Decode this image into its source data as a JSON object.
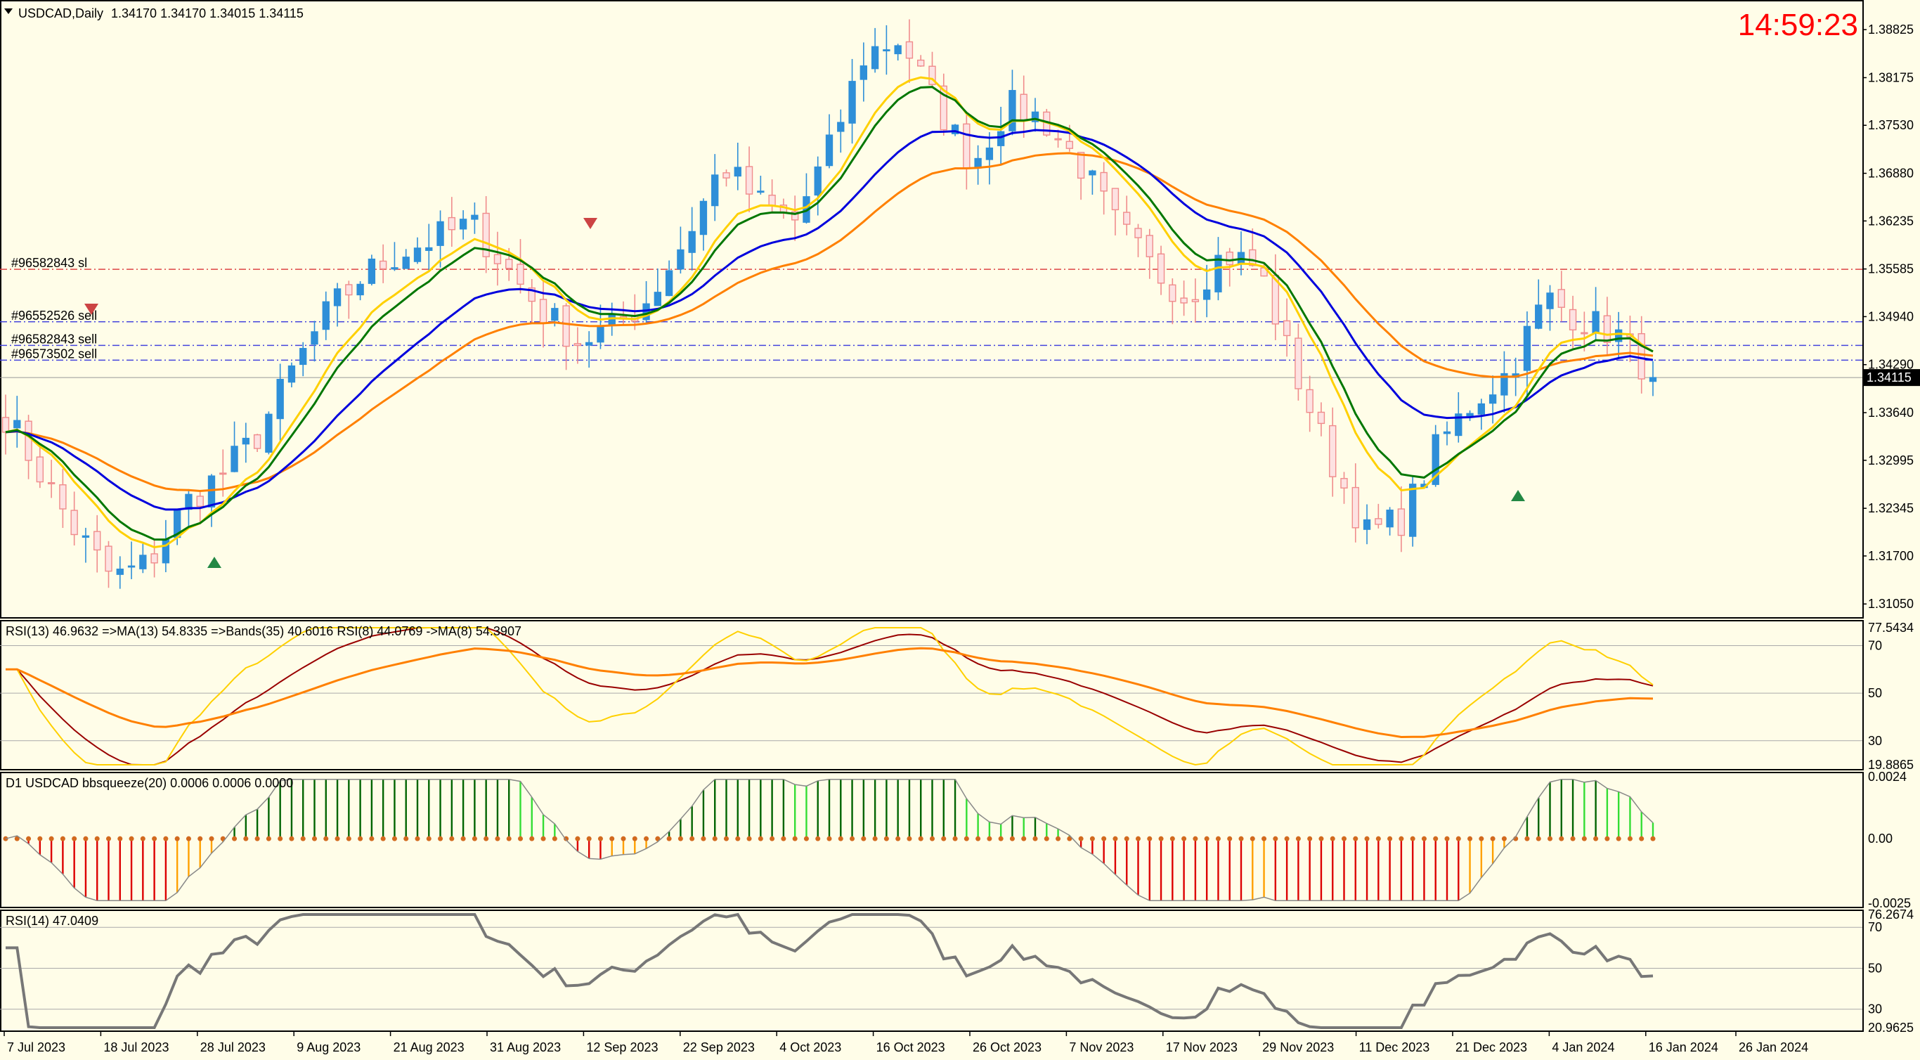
{
  "header": {
    "symbol": "USDCAD,Daily",
    "ohlc": "1.34170 1.34170 1.34015 1.34115",
    "clock": "14:59:23"
  },
  "colors": {
    "background": "#fffde8",
    "bull_candle": "#2e8fd8",
    "bear_candle": "#f08c8c",
    "ma_blue": "#0000dd",
    "ma_green": "#007700",
    "ma_yellow": "#ffd000",
    "ma_orange": "#ff8000",
    "rsi_red": "#990000",
    "rsi_gray": "#777777",
    "hist_dark_green": "#006400",
    "hist_light_green": "#33dd33",
    "hist_red": "#dd0000",
    "hist_orange": "#ffa000"
  },
  "chart_data": {
    "type": "candlestick",
    "symbol": "USDCAD",
    "timeframe": "Daily",
    "price_axis": [
      "1.38825",
      "1.38175",
      "1.37530",
      "1.36880",
      "1.36235",
      "1.35585",
      "1.34940",
      "1.34290",
      "1.33640",
      "1.32995",
      "1.32345",
      "1.31700",
      "1.31050"
    ],
    "ylim": [
      1.309,
      1.3915
    ],
    "current_price": "1.34115",
    "current_price_value": 1.34115,
    "date_axis": [
      "7 Jul 2023",
      "18 Jul 2023",
      "28 Jul 2023",
      "9 Aug 2023",
      "21 Aug 2023",
      "31 Aug 2023",
      "12 Sep 2023",
      "22 Sep 2023",
      "4 Oct 2023",
      "16 Oct 2023",
      "26 Oct 2023",
      "7 Nov 2023",
      "17 Nov 2023",
      "29 Nov 2023",
      "11 Dec 2023",
      "21 Dec 2023",
      "4 Jan 2024",
      "16 Jan 2024",
      "26 Jan 2024"
    ],
    "close_path": [
      1.336,
      1.328,
      1.32,
      1.314,
      1.316,
      1.324,
      1.328,
      1.333,
      1.342,
      1.35,
      1.355,
      1.358,
      1.36,
      1.362,
      1.356,
      1.35,
      1.346,
      1.348,
      1.352,
      1.36,
      1.37,
      1.365,
      1.362,
      1.372,
      1.385,
      1.387,
      1.378,
      1.37,
      1.378,
      1.376,
      1.37,
      1.362,
      1.356,
      1.352,
      1.358,
      1.356,
      1.342,
      1.33,
      1.32,
      1.322,
      1.332,
      1.338,
      1.342,
      1.352,
      1.349,
      1.347,
      1.3412
    ],
    "order_lines": [
      {
        "label": "#96582843 sl",
        "price": 1.3558,
        "style": "dashdot",
        "color": "#dd4444"
      },
      {
        "label": "#96552526 sell",
        "price": 1.3487,
        "style": "dashdot",
        "color": "#4444dd"
      },
      {
        "label": "#96582843 sell",
        "price": 1.3455,
        "style": "dashdot",
        "color": "#4444dd"
      },
      {
        "label": "#96573502 sell",
        "price": 1.3435,
        "style": "dashdot",
        "color": "#4444dd"
      }
    ],
    "indicators": [
      {
        "pane": "rsi_bands",
        "title": "RSI(13) 46.9632  =>MA(13) 54.8335  =>Bands(35) 40.6016  RSI(8) 44.0769  ->MA(8) 54.3907",
        "axis_labels": [
          "77.5434",
          "70",
          "50",
          "30",
          "19.8865"
        ],
        "levels": [
          70,
          50,
          30
        ],
        "ylim": [
          19.8865,
          77.5434
        ]
      },
      {
        "pane": "bbsqueeze",
        "title": "D1 USDCAD bbsqueeze(20) 0.0006 0.0006 0.0000",
        "axis_labels": [
          "0.0024",
          "0.00",
          "-0.0025"
        ],
        "ylim": [
          -0.0025,
          0.0024
        ]
      },
      {
        "pane": "rsi14",
        "title": "RSI(14) 47.0409",
        "axis_labels": [
          "76.2674",
          "70",
          "50",
          "30",
          "20.9625"
        ],
        "levels": [
          70,
          50,
          30
        ],
        "ylim": [
          20.9625,
          76.2674
        ]
      }
    ]
  }
}
